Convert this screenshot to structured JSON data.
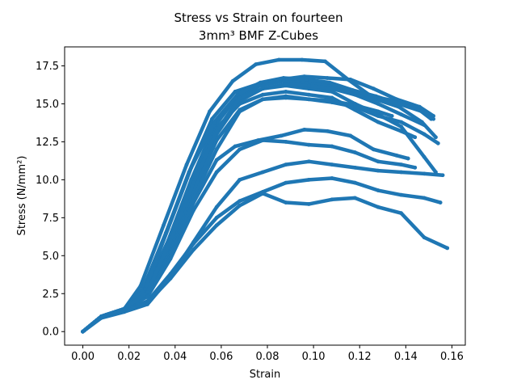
{
  "chart_data": {
    "type": "scatter",
    "title_lines": [
      "Stress vs Strain on fourteen",
      "3mm³ BMF Z-Cubes"
    ],
    "xlabel": "Strain",
    "ylabel": "Stress (N/mm²)",
    "xlim": [
      -0.0079,
      0.1658
    ],
    "ylim": [
      -0.893,
      18.75
    ],
    "x_ticks": [
      "0.00",
      "0.02",
      "0.04",
      "0.06",
      "0.08",
      "0.10",
      "0.12",
      "0.14",
      "0.16"
    ],
    "x_tick_values": [
      0.0,
      0.02,
      0.04,
      0.06,
      0.08,
      0.1,
      0.12,
      0.14,
      0.16
    ],
    "y_ticks": [
      "0.0",
      "2.5",
      "5.0",
      "7.5",
      "10.0",
      "12.5",
      "15.0",
      "17.5"
    ],
    "y_tick_values": [
      0.0,
      2.5,
      5.0,
      7.5,
      10.0,
      12.5,
      15.0,
      17.5
    ],
    "grid": false,
    "marker_color": "#1f77b4",
    "series": [
      {
        "x": [
          0.0,
          0.008,
          0.018,
          0.025,
          0.035,
          0.045,
          0.055,
          0.065,
          0.075,
          0.085,
          0.095,
          0.105,
          0.115,
          0.125,
          0.135,
          0.145,
          0.151
        ],
        "y": [
          0.0,
          1.0,
          1.5,
          3.0,
          7.0,
          11.0,
          14.5,
          16.5,
          17.6,
          17.9,
          17.9,
          17.8,
          16.6,
          15.5,
          15.2,
          14.7,
          14.0
        ]
      },
      {
        "x": [
          0.0,
          0.008,
          0.018,
          0.026,
          0.036,
          0.046,
          0.056,
          0.066,
          0.076,
          0.086,
          0.096,
          0.106,
          0.116,
          0.126,
          0.136,
          0.146,
          0.152
        ],
        "y": [
          0.0,
          1.0,
          1.5,
          2.8,
          6.5,
          10.5,
          14.0,
          15.8,
          16.3,
          16.6,
          16.8,
          16.7,
          16.6,
          16.0,
          15.3,
          14.8,
          14.2
        ]
      },
      {
        "x": [
          0.0,
          0.008,
          0.018,
          0.027,
          0.037,
          0.047,
          0.057,
          0.067,
          0.077,
          0.087,
          0.097,
          0.107,
          0.117,
          0.127,
          0.137,
          0.147,
          0.153
        ],
        "y": [
          0.0,
          1.0,
          1.5,
          2.7,
          6.0,
          10.0,
          13.5,
          15.5,
          16.2,
          16.5,
          16.4,
          16.2,
          15.8,
          15.3,
          14.8,
          13.8,
          12.8
        ]
      },
      {
        "x": [
          0.0,
          0.008,
          0.018,
          0.028,
          0.038,
          0.048,
          0.058,
          0.068,
          0.078,
          0.088,
          0.098,
          0.108,
          0.118,
          0.128,
          0.138,
          0.148,
          0.153
        ],
        "y": [
          0.0,
          1.0,
          1.5,
          2.5,
          5.5,
          9.5,
          13.0,
          15.2,
          16.0,
          16.2,
          16.0,
          15.8,
          15.0,
          14.3,
          13.5,
          11.5,
          10.5
        ]
      },
      {
        "x": [
          0.0,
          0.008,
          0.018,
          0.028,
          0.038,
          0.048,
          0.058,
          0.068,
          0.078,
          0.088,
          0.098,
          0.108,
          0.118,
          0.128,
          0.138,
          0.144
        ],
        "y": [
          0.0,
          1.0,
          1.5,
          2.6,
          6.2,
          10.2,
          13.4,
          15.0,
          15.6,
          15.8,
          15.6,
          15.4,
          14.6,
          13.8,
          13.2,
          12.8
        ]
      },
      {
        "x": [
          0.0,
          0.008,
          0.018,
          0.027,
          0.037,
          0.047,
          0.057,
          0.067,
          0.077,
          0.087,
          0.097,
          0.107,
          0.117,
          0.127,
          0.137,
          0.147,
          0.152
        ],
        "y": [
          0.0,
          1.0,
          1.5,
          2.8,
          6.8,
          10.8,
          13.8,
          15.6,
          16.4,
          16.7,
          16.6,
          16.4,
          15.9,
          15.5,
          15.0,
          14.5,
          14.0
        ]
      },
      {
        "x": [
          0.0,
          0.008,
          0.018,
          0.028,
          0.038,
          0.048,
          0.058,
          0.068,
          0.078,
          0.088,
          0.098,
          0.108,
          0.118,
          0.128,
          0.138,
          0.148,
          0.154
        ],
        "y": [
          0.0,
          1.0,
          1.5,
          2.5,
          5.5,
          9.2,
          12.6,
          14.6,
          15.3,
          15.5,
          15.3,
          15.1,
          14.8,
          14.2,
          13.8,
          13.0,
          12.4
        ]
      },
      {
        "x": [
          0.0,
          0.008,
          0.018,
          0.028,
          0.038,
          0.048,
          0.058,
          0.068,
          0.078,
          0.088,
          0.098,
          0.108,
          0.118,
          0.128,
          0.134
        ],
        "y": [
          0.0,
          1.0,
          1.5,
          2.4,
          5.2,
          8.8,
          12.0,
          14.5,
          15.3,
          15.4,
          15.3,
          15.2,
          14.9,
          14.5,
          14.2
        ]
      },
      {
        "x": [
          0.0,
          0.008,
          0.018,
          0.028,
          0.038,
          0.048,
          0.058,
          0.066,
          0.076,
          0.086,
          0.096,
          0.106,
          0.116,
          0.126,
          0.136,
          0.141
        ],
        "y": [
          0.0,
          1.0,
          1.5,
          2.4,
          5.0,
          8.5,
          11.3,
          12.2,
          12.6,
          12.9,
          13.3,
          13.2,
          12.9,
          12.0,
          11.6,
          11.4
        ]
      },
      {
        "x": [
          0.0,
          0.008,
          0.018,
          0.028,
          0.038,
          0.048,
          0.058,
          0.068,
          0.078,
          0.088,
          0.098,
          0.108,
          0.118,
          0.128,
          0.138,
          0.144
        ],
        "y": [
          0.0,
          1.0,
          1.5,
          2.3,
          4.8,
          8.0,
          10.5,
          12.0,
          12.6,
          12.5,
          12.3,
          12.2,
          11.8,
          11.2,
          11.0,
          10.8
        ]
      },
      {
        "x": [
          0.0,
          0.008,
          0.018,
          0.028,
          0.038,
          0.048,
          0.058,
          0.068,
          0.078,
          0.088,
          0.098,
          0.108,
          0.118,
          0.128,
          0.138,
          0.148,
          0.155
        ],
        "y": [
          0.0,
          1.0,
          1.4,
          2.0,
          3.8,
          5.8,
          7.5,
          8.6,
          9.2,
          9.8,
          10.0,
          10.1,
          9.8,
          9.3,
          9.0,
          8.8,
          8.5
        ]
      },
      {
        "x": [
          0.0,
          0.008,
          0.018,
          0.028,
          0.038,
          0.048,
          0.058,
          0.068,
          0.078,
          0.088,
          0.098,
          0.108,
          0.118,
          0.128,
          0.138,
          0.148,
          0.158
        ],
        "y": [
          0.0,
          1.0,
          1.4,
          1.9,
          3.5,
          5.4,
          7.0,
          8.3,
          9.1,
          8.5,
          8.4,
          8.7,
          8.8,
          8.2,
          7.8,
          6.2,
          5.5
        ]
      },
      {
        "x": [
          0.0,
          0.008,
          0.018,
          0.028,
          0.038,
          0.048,
          0.058,
          0.068,
          0.078,
          0.088,
          0.098,
          0.108,
          0.118,
          0.128,
          0.138,
          0.148,
          0.156
        ],
        "y": [
          0.0,
          0.9,
          1.3,
          1.8,
          3.6,
          5.9,
          8.2,
          10.0,
          10.5,
          11.0,
          11.2,
          11.0,
          10.8,
          10.6,
          10.5,
          10.4,
          10.3
        ]
      },
      {
        "x": [
          0.0,
          0.008,
          0.018,
          0.028,
          0.038,
          0.048,
          0.058,
          0.068,
          0.078,
          0.088,
          0.098,
          0.108,
          0.118,
          0.128,
          0.138,
          0.148
        ],
        "y": [
          0.0,
          1.0,
          1.5,
          2.6,
          6.0,
          9.8,
          13.2,
          15.4,
          16.0,
          16.3,
          16.2,
          16.0,
          15.6,
          15.0,
          14.3,
          13.6
        ]
      }
    ]
  }
}
